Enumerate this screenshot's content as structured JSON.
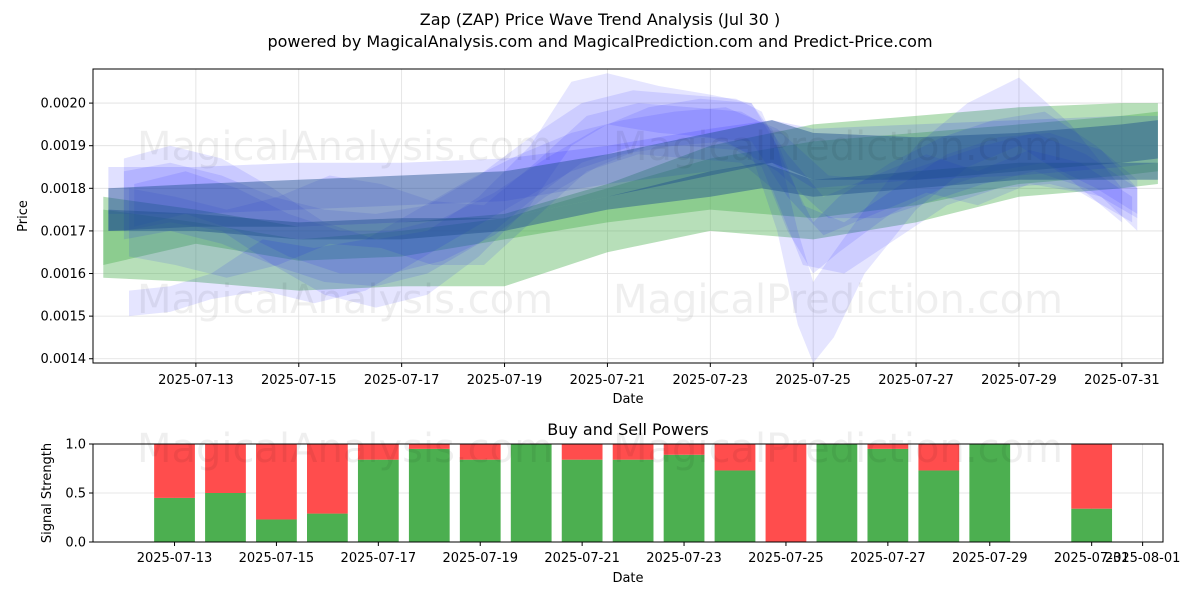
{
  "header": {
    "title": "Zap (ZAP) Price Wave Trend Analysis (Jul 30 )",
    "subtitle": "powered by MagicalAnalysis.com and MagicalPrediction.com and Predict-Price.com"
  },
  "watermarks": [
    "MagicalAnalysis.com",
    "MagicalPrediction.com"
  ],
  "colors": {
    "green": "#4caf50",
    "red": "#ff4d4d",
    "blue": "#0000ff",
    "band_green": "#66b266",
    "band_dark": "#1f4f8f"
  },
  "chart_data": [
    {
      "type": "area",
      "title": "",
      "xlabel": "Date",
      "ylabel": "Price",
      "grid": true,
      "xlim_days": [
        11.0,
        31.8
      ],
      "ylim": [
        0.00139,
        0.00208
      ],
      "xticks": [
        "2025-07-13",
        "2025-07-15",
        "2025-07-17",
        "2025-07-19",
        "2025-07-21",
        "2025-07-23",
        "2025-07-25",
        "2025-07-27",
        "2025-07-29",
        "2025-07-31"
      ],
      "xtick_days": [
        13,
        15,
        17,
        19,
        21,
        23,
        25,
        27,
        29,
        31
      ],
      "yticks": [
        "0.0014",
        "0.0015",
        "0.0016",
        "0.0017",
        "0.0018",
        "0.0019",
        "0.0020"
      ],
      "ytick_values": [
        0.0014,
        0.0015,
        0.0016,
        0.0017,
        0.0018,
        0.0019,
        0.002
      ],
      "series": [
        {
          "name": "green-wide",
          "color": "green",
          "opacity": 0.4,
          "x": [
            11.2,
            13,
            15,
            17,
            19,
            21,
            23,
            25,
            27,
            29,
            31,
            31.7
          ],
          "upper": [
            0.00178,
            0.00175,
            0.00171,
            0.00172,
            0.00174,
            0.00181,
            0.0019,
            0.00195,
            0.00197,
            0.00199,
            0.002,
            0.002
          ],
          "lower": [
            0.00159,
            0.00158,
            0.00156,
            0.00157,
            0.00157,
            0.00165,
            0.0017,
            0.00168,
            0.00172,
            0.00178,
            0.0018,
            0.00181
          ]
        },
        {
          "name": "green-mid",
          "color": "green",
          "opacity": 0.4,
          "x": [
            11.2,
            13,
            15,
            17,
            19,
            21,
            23,
            25,
            27,
            29,
            31,
            31.7
          ],
          "upper": [
            0.00175,
            0.00172,
            0.00168,
            0.0017,
            0.00173,
            0.0018,
            0.00187,
            0.00191,
            0.00193,
            0.00195,
            0.00197,
            0.00198
          ],
          "lower": [
            0.00162,
            0.00167,
            0.00163,
            0.00164,
            0.00168,
            0.00172,
            0.00175,
            0.00173,
            0.00176,
            0.00181,
            0.00183,
            0.00184
          ]
        },
        {
          "name": "blue-flat-top",
          "color": "blue",
          "opacity": 0.12,
          "x": [
            11.3,
            13,
            15,
            17,
            19,
            21,
            23,
            24.2,
            25,
            27,
            29,
            31,
            31.7
          ],
          "upper": [
            0.00185,
            0.00185,
            0.00186,
            0.00186,
            0.00187,
            0.0019,
            0.00194,
            0.00196,
            0.00194,
            0.00195,
            0.00196,
            0.00197,
            0.00197
          ],
          "lower": [
            0.00174,
            0.00174,
            0.00175,
            0.00176,
            0.00177,
            0.00181,
            0.00184,
            0.00186,
            0.0018,
            0.00182,
            0.00183,
            0.00185,
            0.00186
          ]
        },
        {
          "name": "blue-wave-1",
          "color": "blue",
          "opacity": 0.1,
          "x": [
            11.6,
            12.5,
            13.5,
            14.5,
            15.5,
            16.5,
            17.5,
            18.5,
            19.5,
            20.3,
            21,
            22,
            23,
            23.8,
            24.3,
            24.7,
            25,
            25.4,
            26,
            27,
            28,
            29,
            30,
            31
          ],
          "upper": [
            0.00187,
            0.0019,
            0.00187,
            0.0018,
            0.00172,
            0.00168,
            0.0017,
            0.00178,
            0.0019,
            0.00205,
            0.00207,
            0.00204,
            0.00202,
            0.002,
            0.0019,
            0.0017,
            0.00158,
            0.00165,
            0.00175,
            0.0019,
            0.002,
            0.00206,
            0.00195,
            0.0018
          ],
          "lower": [
            0.0017,
            0.00172,
            0.0017,
            0.00162,
            0.00155,
            0.00152,
            0.00155,
            0.00164,
            0.00176,
            0.0019,
            0.00195,
            0.00193,
            0.00192,
            0.00188,
            0.0017,
            0.00148,
            0.00139,
            0.00145,
            0.0016,
            0.00175,
            0.00185,
            0.0019,
            0.00182,
            0.00172
          ]
        },
        {
          "name": "blue-wave-2",
          "color": "blue",
          "opacity": 0.1,
          "x": [
            11.6,
            12.5,
            13.5,
            14.5,
            15.5,
            16.5,
            17.5,
            18.5,
            19.5,
            20.5,
            21.5,
            22.5,
            23.5,
            24,
            24.5,
            25,
            25.5,
            26.5,
            27.5,
            28.5,
            29.5,
            30.5,
            31.3
          ],
          "upper": [
            0.00184,
            0.00186,
            0.00183,
            0.00178,
            0.00175,
            0.00174,
            0.00176,
            0.00183,
            0.00192,
            0.002,
            0.00203,
            0.00202,
            0.00201,
            0.00198,
            0.00184,
            0.00172,
            0.00178,
            0.00186,
            0.00192,
            0.00196,
            0.00198,
            0.0019,
            0.00182
          ],
          "lower": [
            0.00168,
            0.0017,
            0.00167,
            0.00162,
            0.00158,
            0.00157,
            0.0016,
            0.00167,
            0.00177,
            0.00186,
            0.0019,
            0.0019,
            0.00189,
            0.00185,
            0.0017,
            0.0016,
            0.00165,
            0.00174,
            0.0018,
            0.00184,
            0.00186,
            0.0018,
            0.00174
          ]
        },
        {
          "name": "blue-wave-3",
          "color": "blue",
          "opacity": 0.1,
          "x": [
            11.7,
            12.6,
            13.6,
            14.6,
            15.6,
            16.6,
            17.6,
            18.6,
            19.6,
            20.6,
            21.6,
            22.6,
            23.6,
            24.2,
            24.8,
            25.6,
            26.6,
            27.6,
            28.6,
            29.6,
            30.6,
            31.3
          ],
          "upper": [
            0.0018,
            0.00178,
            0.00175,
            0.00178,
            0.00183,
            0.00181,
            0.00177,
            0.00176,
            0.00186,
            0.00197,
            0.002,
            0.00199,
            0.00198,
            0.00194,
            0.00176,
            0.00172,
            0.0018,
            0.00188,
            0.00192,
            0.00193,
            0.00189,
            0.0018
          ],
          "lower": [
            0.00164,
            0.00162,
            0.00159,
            0.00162,
            0.00167,
            0.00166,
            0.00162,
            0.00162,
            0.00173,
            0.00184,
            0.00188,
            0.00187,
            0.00186,
            0.0018,
            0.00162,
            0.0016,
            0.00168,
            0.00176,
            0.0018,
            0.00181,
            0.00178,
            0.0017
          ]
        },
        {
          "name": "blue-wave-4",
          "color": "blue",
          "opacity": 0.1,
          "x": [
            11.7,
            12.5,
            13.3,
            14.3,
            15.3,
            16.3,
            17.3,
            18.3,
            19.3,
            20.3,
            21.3,
            22.3,
            23.3,
            24.3,
            25.3,
            26.3,
            27.3,
            28.3,
            29.3,
            30.3,
            31.3
          ],
          "upper": [
            0.00156,
            0.00157,
            0.0016,
            0.00168,
            0.00166,
            0.00168,
            0.00175,
            0.00182,
            0.00188,
            0.00193,
            0.00196,
            0.00198,
            0.00199,
            0.00194,
            0.00183,
            0.00182,
            0.00186,
            0.0019,
            0.00193,
            0.00188,
            0.0018
          ],
          "lower": [
            0.0015,
            0.00151,
            0.00154,
            0.00156,
            0.00153,
            0.00156,
            0.00163,
            0.0017,
            0.00177,
            0.00184,
            0.00188,
            0.0019,
            0.00191,
            0.00184,
            0.00173,
            0.00173,
            0.00177,
            0.00181,
            0.00184,
            0.0018,
            0.00173
          ]
        },
        {
          "name": "blue-wave-5",
          "color": "blue",
          "opacity": 0.1,
          "x": [
            11.8,
            12.8,
            13.8,
            14.8,
            15.8,
            16.8,
            17.8,
            18.8,
            19.8,
            20.8,
            21.8,
            22.8,
            23.8,
            24.5,
            25.2,
            26.2,
            27.2,
            28.2,
            29.2,
            30.2,
            31.2
          ],
          "upper": [
            0.00181,
            0.00184,
            0.0018,
            0.00174,
            0.0017,
            0.0017,
            0.00173,
            0.00179,
            0.00187,
            0.00194,
            0.00199,
            0.00201,
            0.002,
            0.00188,
            0.00178,
            0.00183,
            0.00188,
            0.00184,
            0.00189,
            0.00186,
            0.00178
          ],
          "lower": [
            0.00171,
            0.00174,
            0.0017,
            0.00164,
            0.0016,
            0.0016,
            0.00163,
            0.00169,
            0.00178,
            0.00185,
            0.0019,
            0.00192,
            0.00191,
            0.00178,
            0.00169,
            0.00174,
            0.00179,
            0.00176,
            0.00181,
            0.00179,
            0.00172
          ]
        },
        {
          "name": "dark-band-top",
          "color": "band_dark",
          "opacity": 0.45,
          "x": [
            11.3,
            13,
            15,
            17,
            19,
            21,
            23,
            24.2,
            25,
            27,
            29,
            31,
            31.7
          ],
          "upper": [
            0.0018,
            0.00181,
            0.00182,
            0.00183,
            0.00184,
            0.00188,
            0.00193,
            0.00196,
            0.00193,
            0.00192,
            0.00193,
            0.00195,
            0.00196
          ],
          "lower": [
            0.0017,
            0.00171,
            0.00171,
            0.00172,
            0.00173,
            0.00178,
            0.00183,
            0.00186,
            0.00182,
            0.00182,
            0.00184,
            0.00186,
            0.00187
          ]
        },
        {
          "name": "dark-band-bottom",
          "color": "band_dark",
          "opacity": 0.45,
          "x": [
            11.3,
            13,
            15,
            17,
            19,
            21,
            23,
            24,
            25,
            27,
            29,
            31,
            31.7
          ],
          "upper": [
            0.00175,
            0.00174,
            0.00172,
            0.00173,
            0.00173,
            0.00178,
            0.00184,
            0.00186,
            0.00182,
            0.00184,
            0.00186,
            0.00186,
            0.00186
          ],
          "lower": [
            0.0017,
            0.0017,
            0.00168,
            0.00168,
            0.0017,
            0.00175,
            0.00178,
            0.0018,
            0.00178,
            0.0018,
            0.00182,
            0.00182,
            0.00182
          ]
        }
      ]
    },
    {
      "type": "bar",
      "title": "Buy and Sell Powers",
      "xlabel": "Date",
      "ylabel": "Signal Strength",
      "grid": true,
      "xlim_days": [
        11.4,
        32.4
      ],
      "ylim": [
        0,
        1
      ],
      "xticks": [
        "2025-07-13",
        "2025-07-15",
        "2025-07-17",
        "2025-07-19",
        "2025-07-21",
        "2025-07-23",
        "2025-07-25",
        "2025-07-27",
        "2025-07-29",
        "2025-07-31",
        "2025-08-01"
      ],
      "xtick_days": [
        13,
        15,
        17,
        19,
        21,
        23,
        25,
        27,
        29,
        31,
        32
      ],
      "yticks": [
        "0.0",
        "0.5",
        "1.0"
      ],
      "ytick_values": [
        0,
        0.5,
        1
      ],
      "days": [
        13,
        14,
        15,
        16,
        17,
        18,
        19,
        20,
        21,
        22,
        23,
        24,
        25,
        26,
        27,
        28,
        29,
        31
      ],
      "series": [
        {
          "name": "Buy",
          "color": "green",
          "values": [
            0.45,
            0.5,
            0.23,
            0.29,
            0.84,
            0.95,
            0.84,
            1.0,
            0.84,
            0.84,
            0.89,
            0.73,
            0.0,
            1.0,
            0.95,
            0.73,
            1.0,
            0.34
          ]
        },
        {
          "name": "Sell",
          "color": "red",
          "values": [
            0.55,
            0.5,
            0.77,
            0.71,
            0.16,
            0.05,
            0.16,
            0.0,
            0.16,
            0.16,
            0.11,
            0.27,
            1.0,
            0.0,
            0.05,
            0.27,
            0.0,
            0.66
          ]
        }
      ]
    }
  ]
}
